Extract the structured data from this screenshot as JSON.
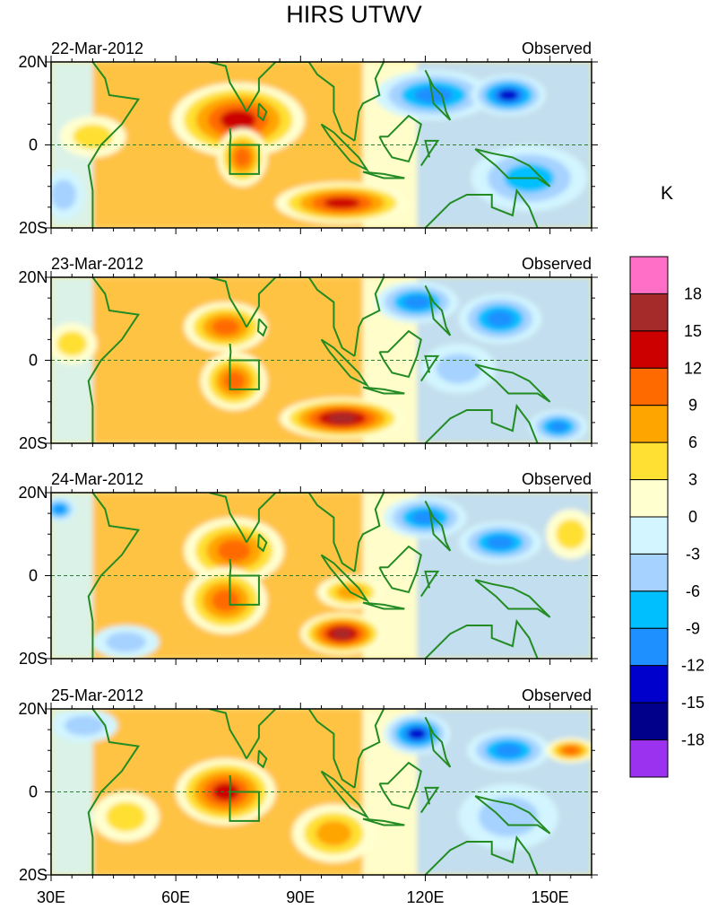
{
  "chart_data": {
    "type": "heatmap",
    "title": "HIRS UTWV",
    "units_label": "K",
    "xlim": [
      30,
      160
    ],
    "ylim": [
      -20,
      20
    ],
    "x_ticks": [
      {
        "value": 30,
        "label": "30E"
      },
      {
        "value": 60,
        "label": "60E"
      },
      {
        "value": 90,
        "label": "90E"
      },
      {
        "value": 120,
        "label": "120E"
      },
      {
        "value": 150,
        "label": "150E"
      }
    ],
    "y_ticks": [
      {
        "value": 20,
        "label": "20N"
      },
      {
        "value": 0,
        "label": "0"
      },
      {
        "value": -20,
        "label": "20S"
      }
    ],
    "colorbar": {
      "levels": [
        "18",
        "15",
        "12",
        "9",
        "6",
        "3",
        "0",
        "-3",
        "-6",
        "-9",
        "-12",
        "-15",
        "-18"
      ],
      "colors": [
        "#ff6ec7",
        "#a52a2a",
        "#cd0000",
        "#ff6a00",
        "#ffa500",
        "#ffe033",
        "#ffffd0",
        "#d2f5ff",
        "#a6d2ff",
        "#00bfff",
        "#1e90ff",
        "#0000cd",
        "#00008b",
        "#9a32f0"
      ]
    },
    "panels": [
      {
        "date": "22-Mar-2012",
        "label": "Observed",
        "anomalies": [
          {
            "lon": 75,
            "lat": 6,
            "rx": 16,
            "ry": 9,
            "value": 16
          },
          {
            "lon": 76,
            "lat": -3,
            "rx": 6,
            "ry": 7,
            "value": 12
          },
          {
            "lon": 100,
            "lat": -14,
            "rx": 16,
            "ry": 5,
            "value": 16
          },
          {
            "lon": 40,
            "lat": 2,
            "rx": 8,
            "ry": 5,
            "value": 8
          },
          {
            "lon": 122,
            "lat": 12,
            "rx": 14,
            "ry": 6,
            "value": -14
          },
          {
            "lon": 140,
            "lat": 12,
            "rx": 9,
            "ry": 5,
            "value": -17
          },
          {
            "lon": 145,
            "lat": -8,
            "rx": 14,
            "ry": 8,
            "value": -11
          },
          {
            "lon": 33,
            "lat": -12,
            "rx": 5,
            "ry": 6,
            "value": -6
          }
        ]
      },
      {
        "date": "23-Mar-2012",
        "label": "Observed",
        "anomalies": [
          {
            "lon": 72,
            "lat": 8,
            "rx": 10,
            "ry": 6,
            "value": 14
          },
          {
            "lon": 74,
            "lat": -5,
            "rx": 8,
            "ry": 7,
            "value": 13
          },
          {
            "lon": 100,
            "lat": -14,
            "rx": 15,
            "ry": 5,
            "value": 18
          },
          {
            "lon": 118,
            "lat": 14,
            "rx": 10,
            "ry": 5,
            "value": -13
          },
          {
            "lon": 138,
            "lat": 10,
            "rx": 10,
            "ry": 6,
            "value": -14
          },
          {
            "lon": 152,
            "lat": -16,
            "rx": 7,
            "ry": 4,
            "value": -14
          },
          {
            "lon": 128,
            "lat": -2,
            "rx": 9,
            "ry": 6,
            "value": -8
          },
          {
            "lon": 35,
            "lat": 4,
            "rx": 6,
            "ry": 5,
            "value": 6
          }
        ]
      },
      {
        "date": "24-Mar-2012",
        "label": "Observed",
        "anomalies": [
          {
            "lon": 74,
            "lat": 6,
            "rx": 12,
            "ry": 8,
            "value": 14
          },
          {
            "lon": 72,
            "lat": -6,
            "rx": 10,
            "ry": 8,
            "value": 13
          },
          {
            "lon": 100,
            "lat": -14,
            "rx": 10,
            "ry": 5,
            "value": 18
          },
          {
            "lon": 102,
            "lat": -4,
            "rx": 8,
            "ry": 4,
            "value": 9
          },
          {
            "lon": 120,
            "lat": 14,
            "rx": 10,
            "ry": 5,
            "value": -13
          },
          {
            "lon": 138,
            "lat": 8,
            "rx": 10,
            "ry": 5,
            "value": -14
          },
          {
            "lon": 32,
            "lat": 16,
            "rx": 4,
            "ry": 3,
            "value": -12
          },
          {
            "lon": 155,
            "lat": 10,
            "rx": 6,
            "ry": 6,
            "value": 8
          },
          {
            "lon": 48,
            "lat": -16,
            "rx": 8,
            "ry": 4,
            "value": -8
          }
        ]
      },
      {
        "date": "25-Mar-2012",
        "label": "Observed",
        "anomalies": [
          {
            "lon": 72,
            "lat": 0,
            "rx": 12,
            "ry": 8,
            "value": 15
          },
          {
            "lon": 98,
            "lat": -10,
            "rx": 10,
            "ry": 7,
            "value": 10
          },
          {
            "lon": 48,
            "lat": -6,
            "rx": 8,
            "ry": 6,
            "value": 6
          },
          {
            "lon": 118,
            "lat": 14,
            "rx": 8,
            "ry": 5,
            "value": -16
          },
          {
            "lon": 140,
            "lat": 10,
            "rx": 10,
            "ry": 5,
            "value": -13
          },
          {
            "lon": 155,
            "lat": 10,
            "rx": 6,
            "ry": 3,
            "value": 13
          },
          {
            "lon": 38,
            "lat": 16,
            "rx": 8,
            "ry": 4,
            "value": -7
          },
          {
            "lon": 140,
            "lat": -6,
            "rx": 12,
            "ry": 8,
            "value": -6
          }
        ]
      }
    ]
  }
}
